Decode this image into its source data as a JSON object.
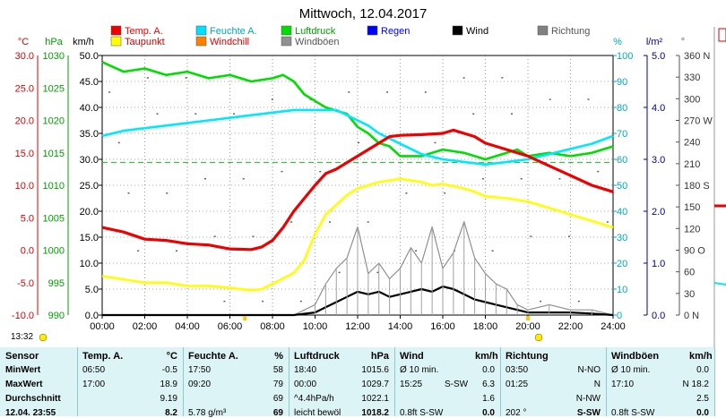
{
  "chart_data": {
    "type": "line",
    "title": "Mittwoch, 12.04.2017",
    "x_ticks": [
      "00:00",
      "02:00",
      "04:00",
      "06:00",
      "08:00",
      "10:00",
      "12:00",
      "14:00",
      "16:00",
      "18:00",
      "20:00",
      "22:00",
      "24:00"
    ],
    "x_range_hours": [
      0,
      24
    ],
    "axes": {
      "temp_c": {
        "unit": "°C",
        "range": [
          -10,
          30
        ],
        "ticks": [
          "30.0",
          "25.0",
          "20.0",
          "15.0",
          "10.0",
          "5.0",
          "0.0",
          "-5.0",
          "-10.0"
        ],
        "color": "#e00000"
      },
      "pressure_hpa": {
        "unit": "hPa",
        "range": [
          990,
          1030
        ],
        "ticks": [
          "1030",
          "1025",
          "1020",
          "1015",
          "1010",
          "1005",
          "1000",
          "995",
          "990"
        ],
        "color": "#00a000"
      },
      "wind_kmh": {
        "unit": "km/h",
        "range": [
          0,
          50
        ],
        "ticks": [
          "50.0",
          "45.0",
          "40.0",
          "35.0",
          "30.0",
          "25.0",
          "20.0",
          "15.0",
          "10.0",
          "5.0",
          "0.0"
        ],
        "color": "#000000"
      },
      "humidity_pct": {
        "unit": "%",
        "range": [
          0,
          100
        ],
        "ticks": [
          "100",
          "90",
          "80",
          "70",
          "60",
          "50",
          "40",
          "30",
          "20",
          "10",
          "0"
        ],
        "color": "#00c8d8"
      },
      "rain_lm2": {
        "unit": "l/m²",
        "range": [
          0,
          5
        ],
        "ticks": [
          "5.0",
          "4.0",
          "3.0",
          "2.0",
          "1.0",
          "0.0"
        ],
        "color": "#0000a0"
      },
      "direction_deg": {
        "unit": "°",
        "range": [
          0,
          360
        ],
        "ticks": [
          "360 N",
          "330",
          "300",
          "270 W",
          "240",
          "210",
          "180 S",
          "150",
          "120",
          "90 O",
          "60",
          "30",
          "0 N"
        ],
        "color": "#555555"
      }
    },
    "legend": [
      {
        "label": "Temp. A.",
        "color": "#ee0000"
      },
      {
        "label": "Feuchte A.",
        "color": "#00e0ff"
      },
      {
        "label": "Luftdruck",
        "color": "#00dd00"
      },
      {
        "label": "Regen",
        "color": "#0000ff"
      },
      {
        "label": "Wind",
        "color": "#000000"
      },
      {
        "label": "Richtung",
        "color": "#808080"
      },
      {
        "label": "Taupunkt",
        "color": "#ffff00"
      },
      {
        "label": "Windchill",
        "color": "#ff8000"
      },
      {
        "label": "Windböen",
        "color": "#909090"
      }
    ],
    "series": [
      {
        "name": "Temp. A.",
        "axis": "temp_c",
        "x": [
          0,
          1,
          2,
          3,
          4,
          5,
          6,
          7,
          7.5,
          8,
          8.5,
          9,
          9.5,
          10,
          10.5,
          11,
          11.5,
          12,
          12.5,
          13,
          13.5,
          14,
          15,
          16,
          16.5,
          17,
          17.5,
          18,
          19,
          20,
          21,
          22,
          23,
          24
        ],
        "y": [
          3.5,
          2.8,
          1.7,
          1.5,
          1.0,
          0.8,
          0.2,
          0.1,
          0.5,
          1.5,
          3.5,
          6.0,
          8.0,
          10.0,
          11.8,
          12.5,
          13.5,
          14.5,
          15.5,
          16.5,
          17.5,
          17.7,
          17.8,
          18.0,
          18.5,
          18.0,
          17.5,
          16.5,
          15.5,
          14.5,
          13.0,
          11.5,
          10.0,
          9.0
        ]
      },
      {
        "name": "Taupunkt",
        "axis": "temp_c",
        "x": [
          0,
          1,
          2,
          3,
          4,
          5,
          6,
          7,
          7.5,
          8,
          9,
          9.5,
          10,
          10.5,
          11,
          11.5,
          12,
          13,
          14,
          15,
          15.5,
          16,
          17,
          17.5,
          18,
          19,
          20,
          21,
          22,
          23,
          24
        ],
        "y": [
          -4,
          -4.5,
          -5,
          -5,
          -5.5,
          -5.5,
          -5.8,
          -6.2,
          -6.0,
          -5.2,
          -3.5,
          -1.5,
          2.5,
          5.5,
          7.0,
          8.5,
          9.5,
          10.5,
          11.0,
          10.5,
          10.0,
          10.2,
          9.5,
          9.0,
          8.3,
          8.0,
          7.5,
          6.5,
          5.5,
          4.5,
          3.5
        ]
      },
      {
        "name": "Feuchte A.",
        "axis": "humidity_pct",
        "x": [
          0,
          1,
          2,
          3,
          4,
          5,
          6,
          7,
          8,
          9,
          10,
          11,
          12,
          12.5,
          13,
          14,
          15,
          16,
          17,
          18,
          19,
          20,
          21,
          22,
          23,
          24
        ],
        "y": [
          69,
          71,
          72,
          73,
          74,
          75,
          76,
          77,
          78,
          79,
          79,
          79,
          75,
          73,
          70,
          66,
          62,
          60,
          59,
          58,
          59,
          60,
          62,
          64,
          66,
          69
        ]
      },
      {
        "name": "Luftdruck",
        "axis": "pressure_hpa",
        "x": [
          0,
          1,
          2,
          3,
          4,
          5,
          6,
          7,
          8,
          8.5,
          9,
          9.5,
          10,
          10.5,
          11,
          11.5,
          12,
          12.5,
          13,
          13.5,
          14,
          15,
          16,
          17,
          18,
          19,
          19.5,
          20,
          21,
          22,
          23,
          24
        ],
        "y": [
          1029,
          1027.5,
          1028,
          1027,
          1027.5,
          1026.5,
          1027,
          1026,
          1026.5,
          1027,
          1026,
          1024,
          1023,
          1022,
          1021.5,
          1021,
          1019,
          1018,
          1016.5,
          1016,
          1014.5,
          1014.5,
          1015.5,
          1015,
          1014,
          1015,
          1015.5,
          1014.5,
          1015,
          1014.5,
          1015,
          1016
        ]
      },
      {
        "name": "Wind",
        "axis": "wind_kmh",
        "x": [
          0,
          9,
          10,
          10.5,
          11,
          11.5,
          12,
          12.5,
          13,
          13.5,
          14,
          14.5,
          15,
          15.5,
          16,
          16.5,
          17,
          17.5,
          18,
          18.5,
          19,
          19.5,
          20,
          21,
          22,
          23,
          24
        ],
        "y": [
          0,
          0,
          0.5,
          1.5,
          2.5,
          3.5,
          4.5,
          4.0,
          4.5,
          3.5,
          4.0,
          4.5,
          5.0,
          4.5,
          5.5,
          5.0,
          4.0,
          3.0,
          2.5,
          2.0,
          1.5,
          1.0,
          0.5,
          0.5,
          0.5,
          0.3,
          0
        ]
      },
      {
        "name": "Windböen",
        "axis": "wind_kmh",
        "x": [
          0,
          9,
          10,
          10.5,
          11,
          11.5,
          12,
          12.5,
          13,
          13.5,
          14,
          14.5,
          15,
          15.5,
          16,
          16.5,
          17,
          17.5,
          18,
          18.5,
          19,
          19.5,
          20,
          21,
          22,
          23,
          24
        ],
        "y": [
          0,
          0,
          2,
          6,
          9,
          11,
          17,
          8,
          10,
          7,
          9,
          13,
          10,
          17,
          9,
          12,
          18,
          11,
          8,
          6,
          5,
          2,
          1,
          2,
          1,
          1,
          0
        ]
      }
    ],
    "reference_line": {
      "axis": "pressure_hpa",
      "value": 1013.5,
      "style": "dashed",
      "color": "#00cc00"
    }
  },
  "timebar": {
    "time": "13:32"
  },
  "table": {
    "columns": [
      {
        "header": "Sensor"
      },
      {
        "header": "Temp. A.",
        "unit": "°C"
      },
      {
        "header": "Feuchte A.",
        "unit": "%"
      },
      {
        "header": "Luftdruck",
        "unit": "hPa"
      },
      {
        "header": "Wind",
        "unit": "km/h"
      },
      {
        "header": "Richtung"
      },
      {
        "header": "Windböen",
        "unit": "km/h"
      }
    ],
    "rows": [
      {
        "label": "MinWert",
        "temp_time": "06:50",
        "temp": "-0.5",
        "hum_time": "17:50",
        "hum": "58",
        "press_time": "18:40",
        "press": "1015.6",
        "wind_time": "Ø 10 min.",
        "wind": "0.0",
        "dir_time": "03:50",
        "dir": "N-NO",
        "gust_time": "Ø 10 min.",
        "gust": "0.0"
      },
      {
        "label": "MaxWert",
        "temp_time": "17:00",
        "temp": "18.9",
        "hum_time": "09:20",
        "hum": "79",
        "press_time": "00:00",
        "press": "1029.7",
        "wind_time": "15:25",
        "wind_dir": "S-SW",
        "wind": "6.3",
        "dir_time": "01:25",
        "dir": "N",
        "gust_time": "17:10",
        "gust": "N 18.2"
      },
      {
        "label": "Durchschnitt",
        "temp": "9.19",
        "hum": "69",
        "press_time": "^4.4hPa/h",
        "press": "1022.1",
        "wind": "1.6",
        "dir": "N-NW",
        "gust": "2.5"
      },
      {
        "label": "12.04. 23:55",
        "temp": "8.2",
        "hum_time": "5.78 g/m³",
        "hum": "69",
        "press_time": "leicht bewöl",
        "press": "1018.2",
        "wind_time": "0.8ft S-SW",
        "wind": "0.0",
        "dir_time": "202 °",
        "dir": "S-SW",
        "gust_time": "0.8ft S-SW",
        "gust": "0.0"
      }
    ]
  }
}
